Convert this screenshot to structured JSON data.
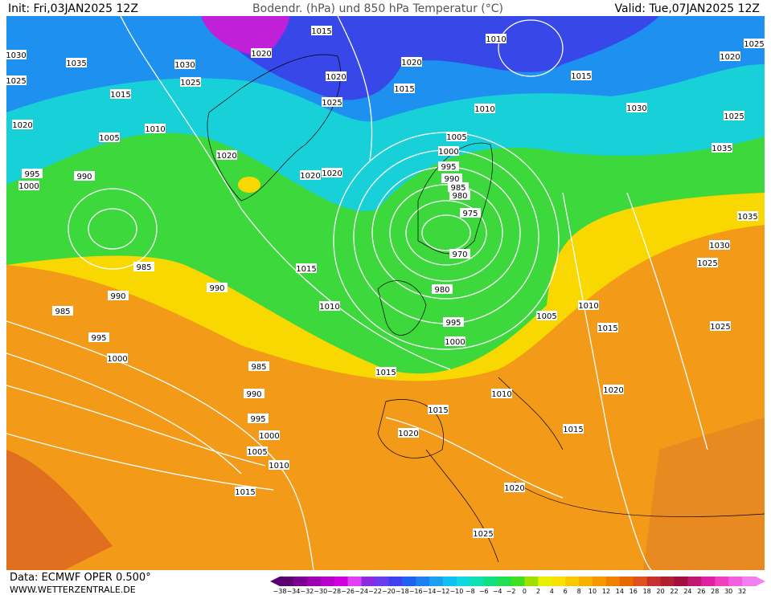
{
  "header": {
    "init": "Init: Fri,03JAN2025 12Z",
    "title": "Bodendr. (hPa) und 850 hPa Temperatur (°C)",
    "valid": "Valid: Tue,07JAN2025 12Z"
  },
  "footer": {
    "source": "Data: ECMWF OPER 0.500°",
    "url": "WWW.WETTERZENTRALE.DE"
  },
  "colorbar": {
    "labels": [
      "−38",
      "−34",
      "−32",
      "−30",
      "−28",
      "−26",
      "−24",
      "−22",
      "−20",
      "−18",
      "−16",
      "−14",
      "−12",
      "−10",
      "−8",
      "−6",
      "−4",
      "−2",
      "0",
      "2",
      "4",
      "6",
      "8",
      "10",
      "12",
      "14",
      "16",
      "18",
      "20",
      "22",
      "24",
      "26",
      "28",
      "30",
      "32"
    ],
    "colors": [
      "#5a0070",
      "#7a008f",
      "#9a00b0",
      "#b800cc",
      "#d000e0",
      "#e040f0",
      "#8a2be2",
      "#6a3cf0",
      "#4040f0",
      "#2060f0",
      "#1e7ff0",
      "#1aa0f0",
      "#10c0f0",
      "#10d8e0",
      "#10e0b0",
      "#10e080",
      "#20e050",
      "#40e020",
      "#a0e000",
      "#e8f000",
      "#f8e000",
      "#f8c800",
      "#f8b000",
      "#f89800",
      "#f08000",
      "#e86800",
      "#e05020",
      "#c83030",
      "#b02030",
      "#a01040",
      "#c01870",
      "#e020a0",
      "#f040c0",
      "#f060e0",
      "#f080f0"
    ]
  },
  "isobar_labels": [
    "1015",
    "1020",
    "1030",
    "1035",
    "1030",
    "1025",
    "1025",
    "1015",
    "1020",
    "1025",
    "1020",
    "1015",
    "1010",
    "1015",
    "1010",
    "1030",
    "1020",
    "1025",
    "1025",
    "1035",
    "1035",
    "1030",
    "1025",
    "1020",
    "1010",
    "1005",
    "1020",
    "1020",
    "1020",
    "995",
    "990",
    "1000",
    "1005",
    "1000",
    "995",
    "990",
    "985",
    "980",
    "975",
    "970",
    "985",
    "1015",
    "990",
    "990",
    "985",
    "980",
    "1010",
    "1010",
    "1005",
    "995",
    "1015",
    "1025",
    "995",
    "1000",
    "1000",
    "985",
    "1015",
    "990",
    "1010",
    "1020",
    "995",
    "1015",
    "1020",
    "1015",
    "1000",
    "1005",
    "1010",
    "1015",
    "1020",
    "1025"
  ]
}
